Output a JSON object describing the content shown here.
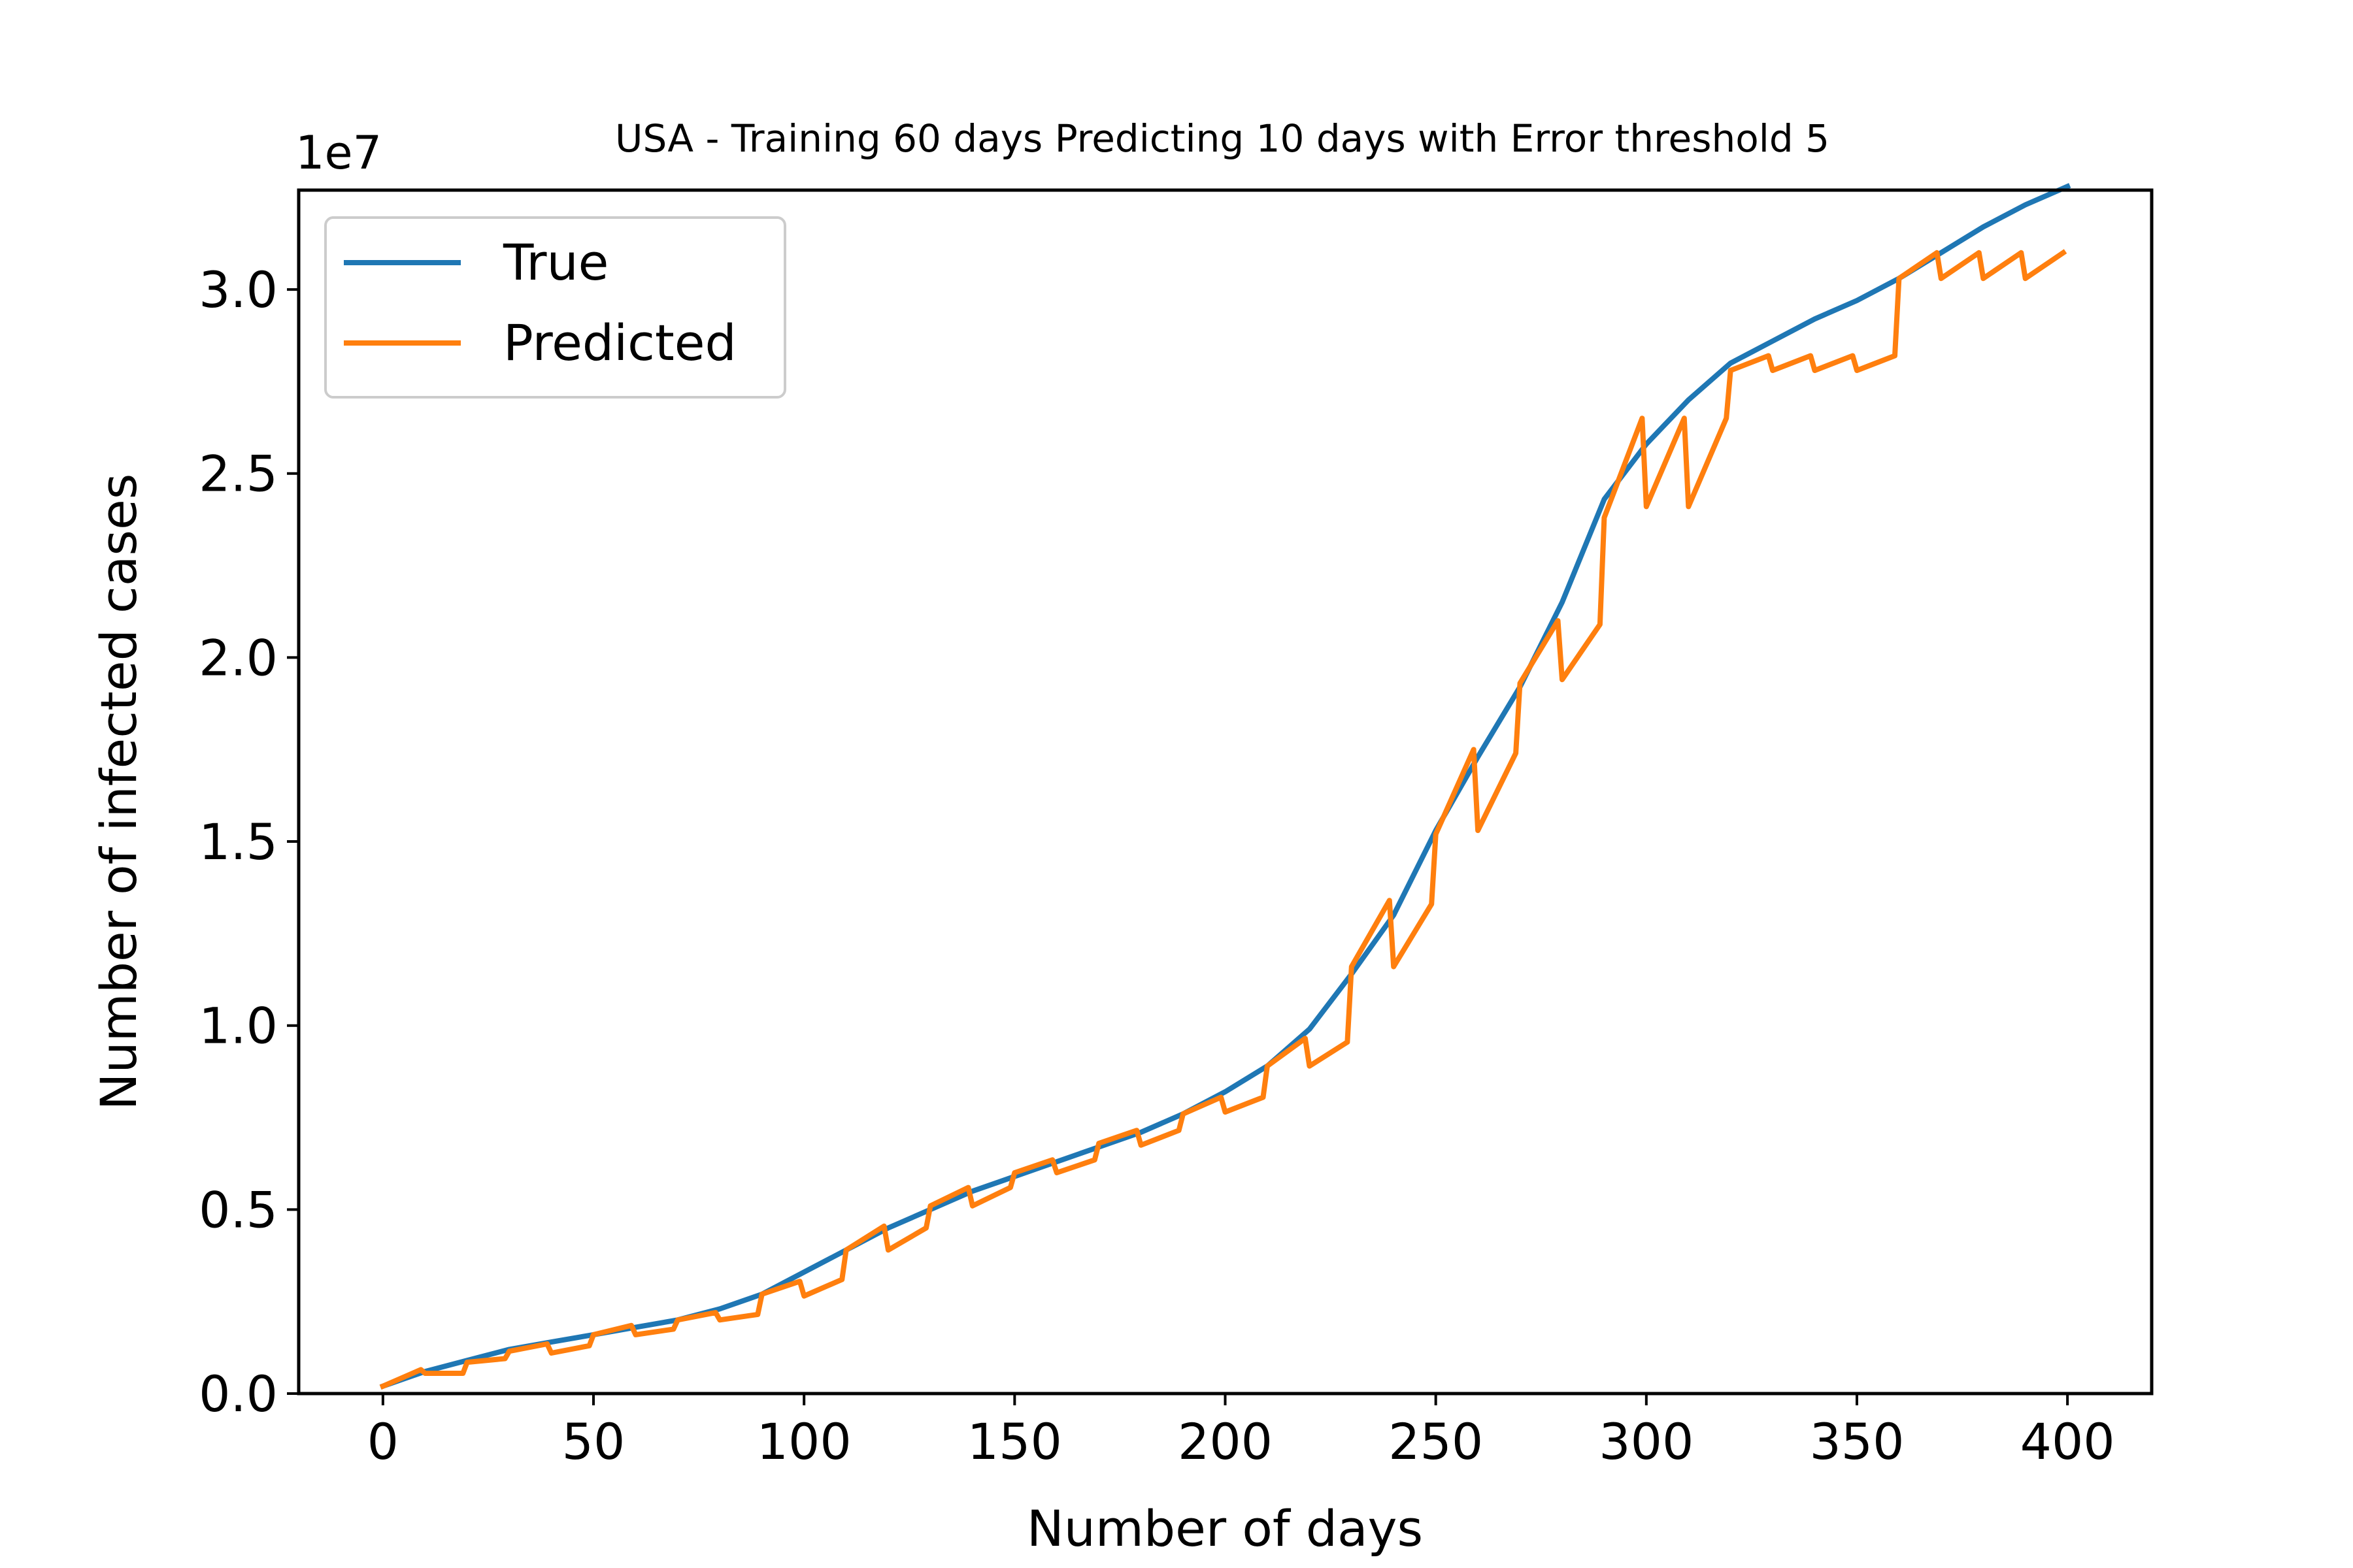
{
  "chart_data": {
    "type": "line",
    "title": "USA - Training 60 days Predicting 10 days with Error threshold 5",
    "xlabel": "Number of days",
    "ylabel": "Number of infected cases",
    "y_offset_label": "1e7",
    "xlim": [
      -20,
      420
    ],
    "ylim": [
      0,
      32700000
    ],
    "x_ticks": [
      0,
      50,
      100,
      150,
      200,
      250,
      300,
      350,
      400
    ],
    "x_tick_labels": [
      "0",
      "50",
      "100",
      "150",
      "200",
      "250",
      "300",
      "350",
      "400"
    ],
    "y_ticks": [
      0,
      5000000,
      10000000,
      15000000,
      20000000,
      25000000,
      30000000
    ],
    "y_tick_labels": [
      "0.0",
      "0.5",
      "1.0",
      "1.5",
      "2.0",
      "2.5",
      "3.0"
    ],
    "grid": false,
    "legend_position": "top-left",
    "series": [
      {
        "name": "True",
        "color": "#1f77b4",
        "x": [
          0,
          10,
          20,
          30,
          40,
          50,
          60,
          70,
          80,
          90,
          100,
          110,
          120,
          130,
          140,
          150,
          160,
          170,
          180,
          190,
          200,
          210,
          220,
          230,
          240,
          250,
          260,
          270,
          280,
          290,
          300,
          310,
          320,
          330,
          340,
          350,
          360,
          370,
          380,
          390,
          400
        ],
        "y": [
          200000,
          600000,
          900000,
          1200000,
          1400000,
          1600000,
          1800000,
          2000000,
          2300000,
          2700000,
          3300000,
          3900000,
          4500000,
          5000000,
          5500000,
          5900000,
          6300000,
          6700000,
          7100000,
          7600000,
          8200000,
          8900000,
          9900000,
          11400000,
          13000000,
          15300000,
          17300000,
          19200000,
          21500000,
          24300000,
          25800000,
          27000000,
          28000000,
          28600000,
          29200000,
          29700000,
          30300000,
          31000000,
          31700000,
          32300000,
          32800000
        ]
      },
      {
        "name": "Predicted",
        "color": "#ff7f0e",
        "x": [
          0,
          9,
          10,
          19,
          20,
          29,
          30,
          39,
          40,
          49,
          50,
          59,
          60,
          69,
          70,
          79,
          80,
          89,
          90,
          99,
          100,
          109,
          110,
          119,
          120,
          129,
          130,
          139,
          140,
          149,
          150,
          159,
          160,
          169,
          170,
          179,
          180,
          189,
          190,
          199,
          200,
          209,
          210,
          219,
          220,
          229,
          230,
          239,
          240,
          249,
          250,
          259,
          260,
          269,
          270,
          279,
          280,
          289,
          290,
          299,
          300,
          309,
          310,
          319,
          320,
          329,
          330,
          339,
          340,
          349,
          350,
          359,
          360,
          369,
          370,
          379,
          380,
          389,
          390,
          399
        ],
        "y": [
          200000,
          650000,
          550000,
          550000,
          850000,
          950000,
          1150000,
          1350000,
          1100000,
          1300000,
          1600000,
          1850000,
          1600000,
          1750000,
          2000000,
          2200000,
          2000000,
          2150000,
          2700000,
          3050000,
          2650000,
          3100000,
          3900000,
          4550000,
          3900000,
          4500000,
          5100000,
          5600000,
          5100000,
          5600000,
          6000000,
          6350000,
          6000000,
          6350000,
          6800000,
          7150000,
          6750000,
          7150000,
          7600000,
          8050000,
          7650000,
          8050000,
          8900000,
          9650000,
          8900000,
          9550000,
          11600000,
          13400000,
          11600000,
          13300000,
          15200000,
          17500000,
          15300000,
          17400000,
          19300000,
          21000000,
          19400000,
          20900000,
          23800000,
          26500000,
          24100000,
          26500000,
          24100000,
          26500000,
          27800000,
          28200000,
          27800000,
          28200000,
          27800000,
          28200000,
          27800000,
          28200000,
          30300000,
          31000000,
          30300000,
          31000000,
          30300000,
          31000000,
          30300000,
          31000000
        ]
      }
    ]
  }
}
